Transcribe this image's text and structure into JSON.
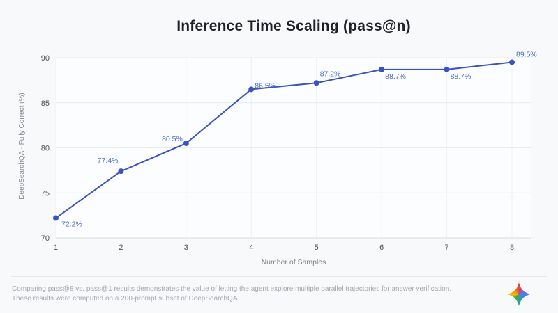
{
  "page": {
    "footnote_line1": "Comparing pass@8 vs. pass@1 results demonstrates the value of letting the agent explore multiple parallel trajectories for answer verification.",
    "footnote_line2": "These results were computed on a 200-prompt subset of DeepSearchQA.",
    "logo_icon": "gemini-sparkle-icon"
  },
  "colors": {
    "background": "#f8f9fb",
    "plot_bg": "#fcfdfe",
    "title": "#1f2126",
    "line": "#3b53c1",
    "point": "#3b53c1",
    "data_label": "#4a6bd8",
    "grid_h": "#e8eaee",
    "grid_v": "#eef1f5",
    "axis_line": "#d9dbdf",
    "tick_label": "#4d5156",
    "axis_title": "#7d8187",
    "footnote": "#a3a8af",
    "divider": "#e6e8eb"
  },
  "chart_data": {
    "type": "line",
    "title": "Inference Time Scaling (pass@n)",
    "xlabel": "Number of Samples",
    "ylabel": "DeepSearchQA - Fully Correct (%)",
    "x": [
      1,
      2,
      3,
      4,
      5,
      6,
      7,
      8
    ],
    "values": [
      72.2,
      77.4,
      80.5,
      86.5,
      87.2,
      88.7,
      88.7,
      89.5
    ],
    "labels": [
      "72.2%",
      "77.4%",
      "80.5%",
      "86.5%",
      "87.2%",
      "88.7%",
      "88.7%",
      "89.5%"
    ],
    "ylim": [
      70,
      90
    ],
    "yticks": [
      70,
      75,
      80,
      85,
      90
    ],
    "xticks": [
      1,
      2,
      3,
      4,
      5,
      6,
      7,
      8
    ],
    "grid": true,
    "legend": false
  }
}
